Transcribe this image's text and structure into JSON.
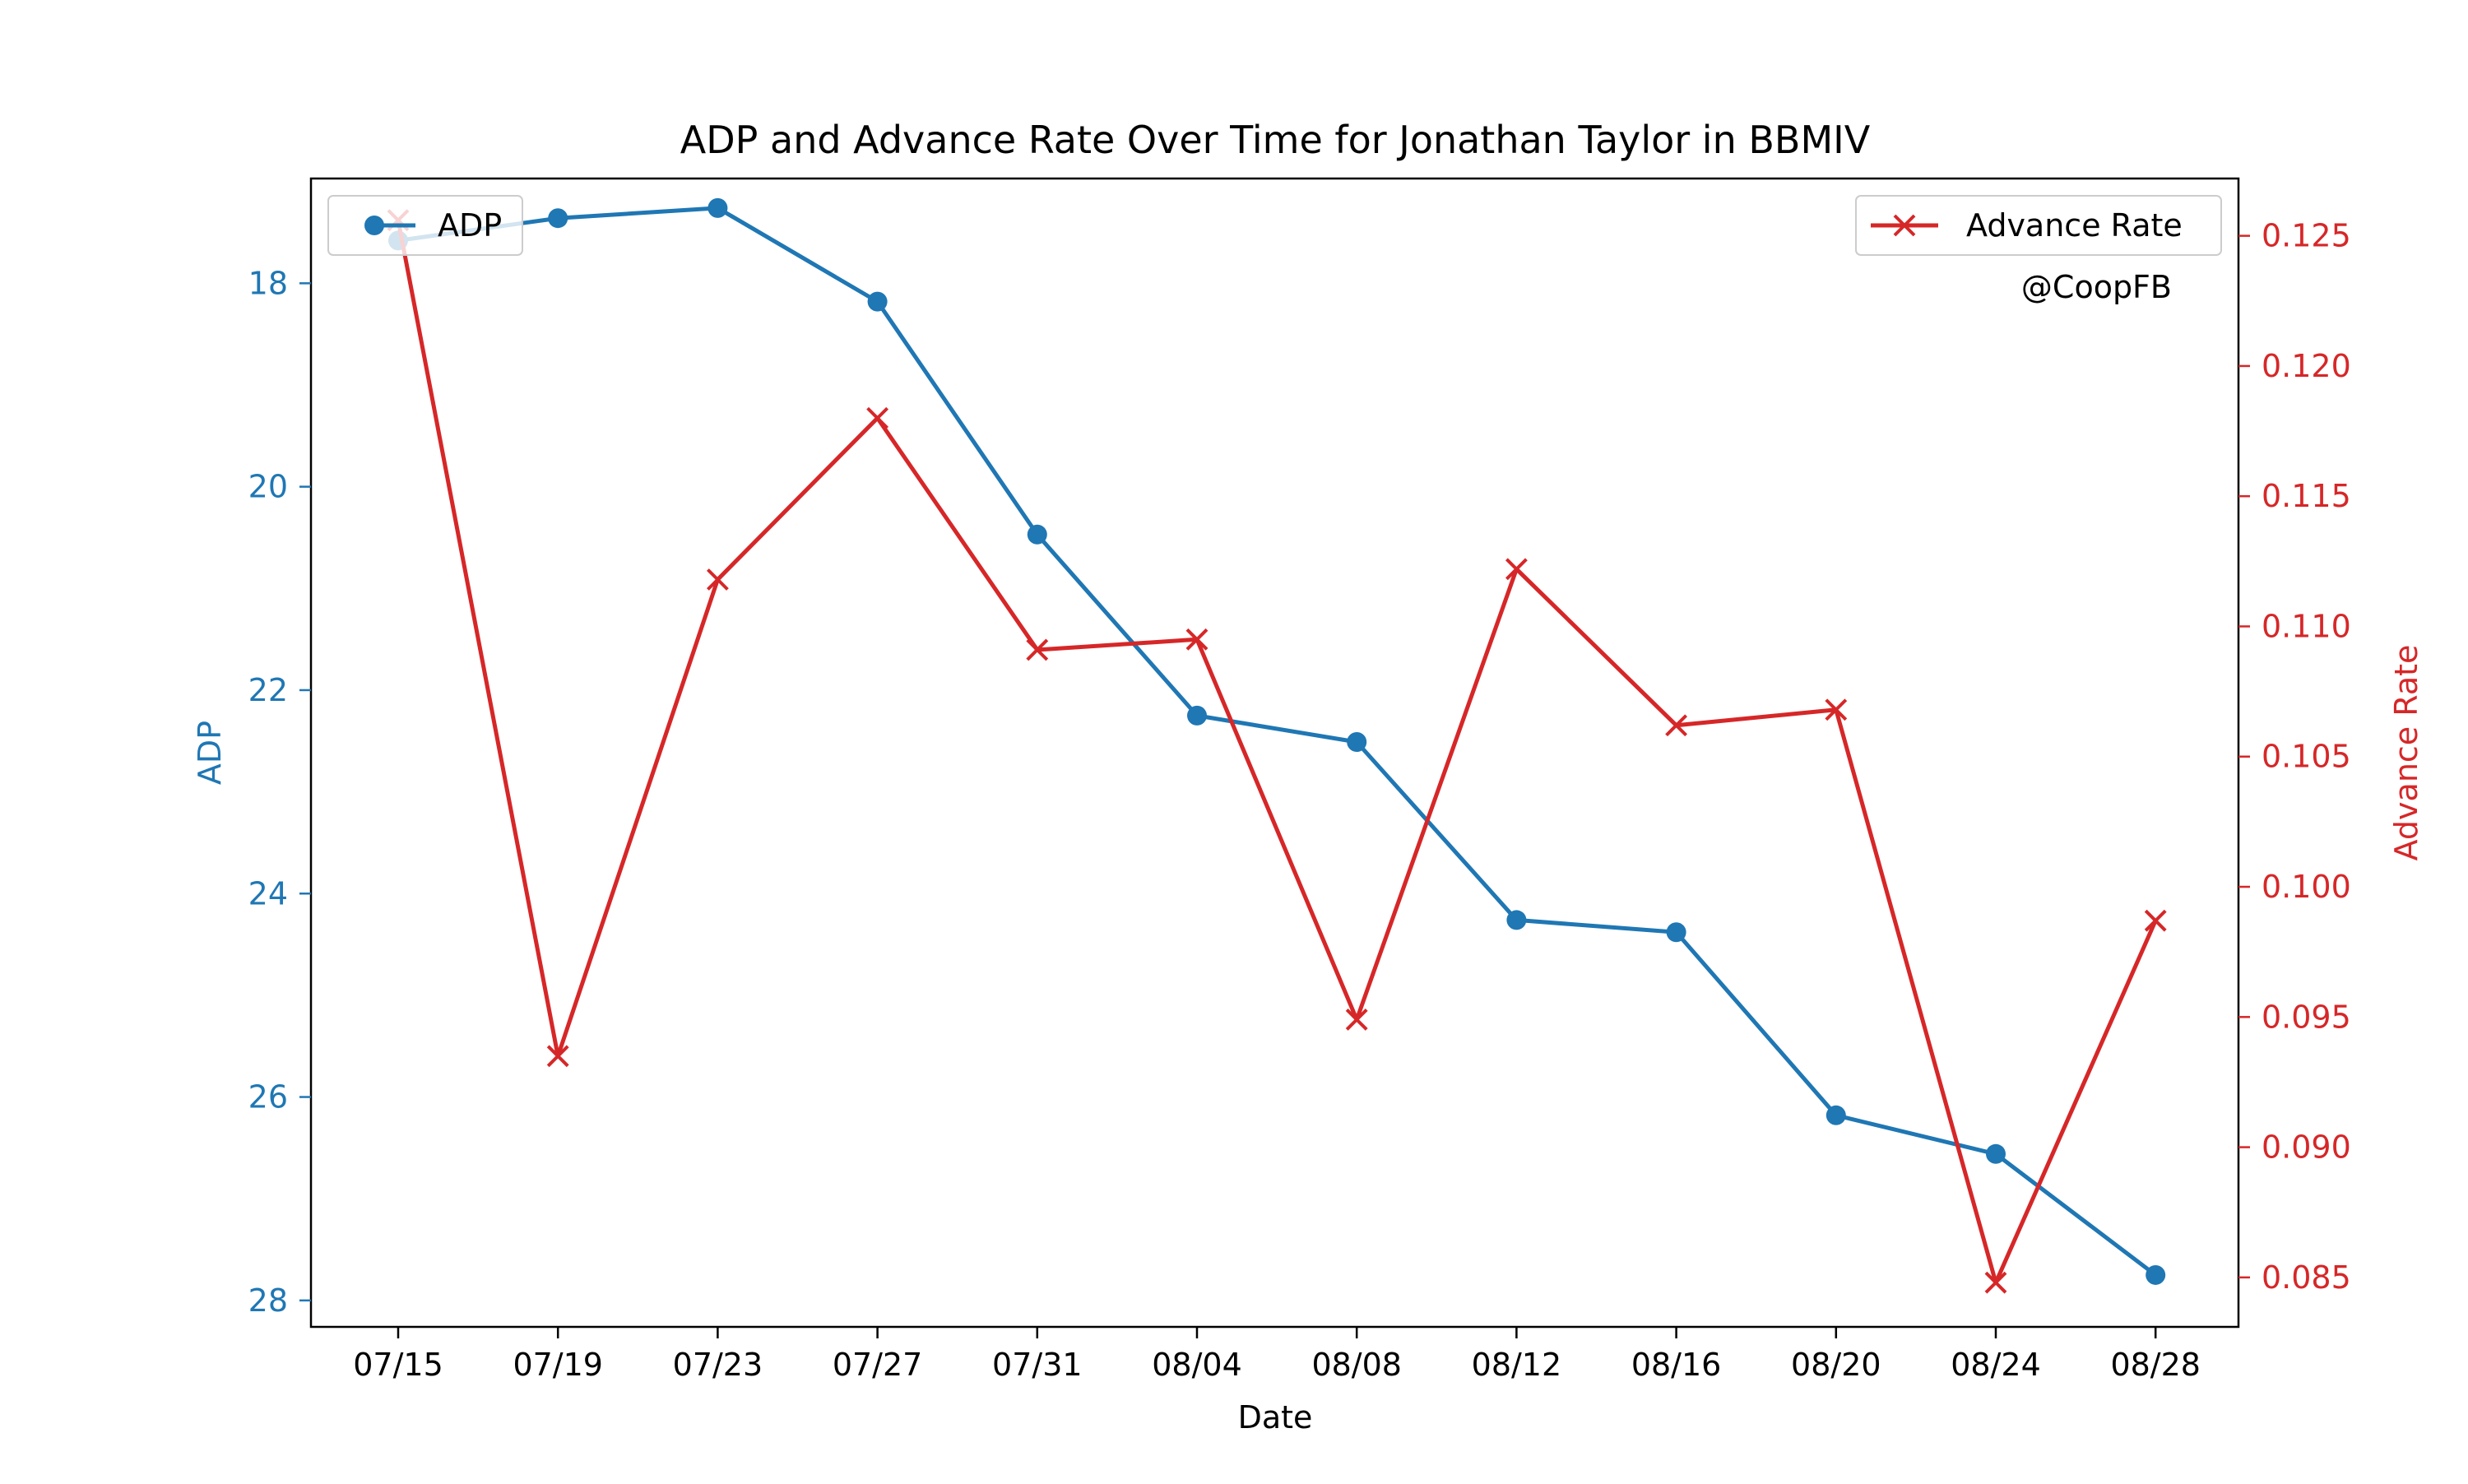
{
  "chart_data": {
    "type": "line",
    "title": "ADP and Advance Rate Over Time for Jonathan Taylor in BBMIV",
    "xlabel": "Date",
    "ylabel_left": "ADP",
    "ylabel_right": "Advance Rate",
    "watermark": "@CoopFB",
    "x": [
      "07/15",
      "07/19",
      "07/23",
      "07/27",
      "07/31",
      "08/04",
      "08/08",
      "08/12",
      "08/16",
      "08/20",
      "08/24",
      "08/28"
    ],
    "left_axis": {
      "inverted": true,
      "ylim": [
        28.26,
        16.97
      ],
      "ticks": [
        "18",
        "20",
        "22",
        "24",
        "26",
        "28"
      ],
      "tick_values": [
        18,
        20,
        22,
        24,
        26,
        28
      ],
      "color": "#1f77b4"
    },
    "right_axis": {
      "ylim": [
        0.0831,
        0.1272
      ],
      "ticks": [
        "0.085",
        "0.090",
        "0.095",
        "0.100",
        "0.105",
        "0.110",
        "0.115",
        "0.120",
        "0.125"
      ],
      "tick_values": [
        0.085,
        0.09,
        0.095,
        0.1,
        0.105,
        0.11,
        0.115,
        0.12,
        0.125
      ],
      "color": "#d62728"
    },
    "series": [
      {
        "name": "ADP",
        "axis": "left",
        "marker": "circle",
        "color": "#1f77b4",
        "values": [
          17.58,
          17.36,
          17.26,
          18.18,
          20.47,
          22.25,
          22.51,
          24.26,
          24.38,
          26.18,
          26.56,
          27.75
        ]
      },
      {
        "name": "Advance Rate",
        "axis": "right",
        "marker": "x",
        "color": "#d62728",
        "values": [
          0.1256,
          0.0935,
          0.1118,
          0.118,
          0.1091,
          0.1095,
          0.0949,
          0.1122,
          0.1062,
          0.1068,
          0.0848,
          0.0987
        ]
      }
    ],
    "legend_left_position": "upper-left",
    "legend_right_position": "upper-right",
    "grid": false
  }
}
